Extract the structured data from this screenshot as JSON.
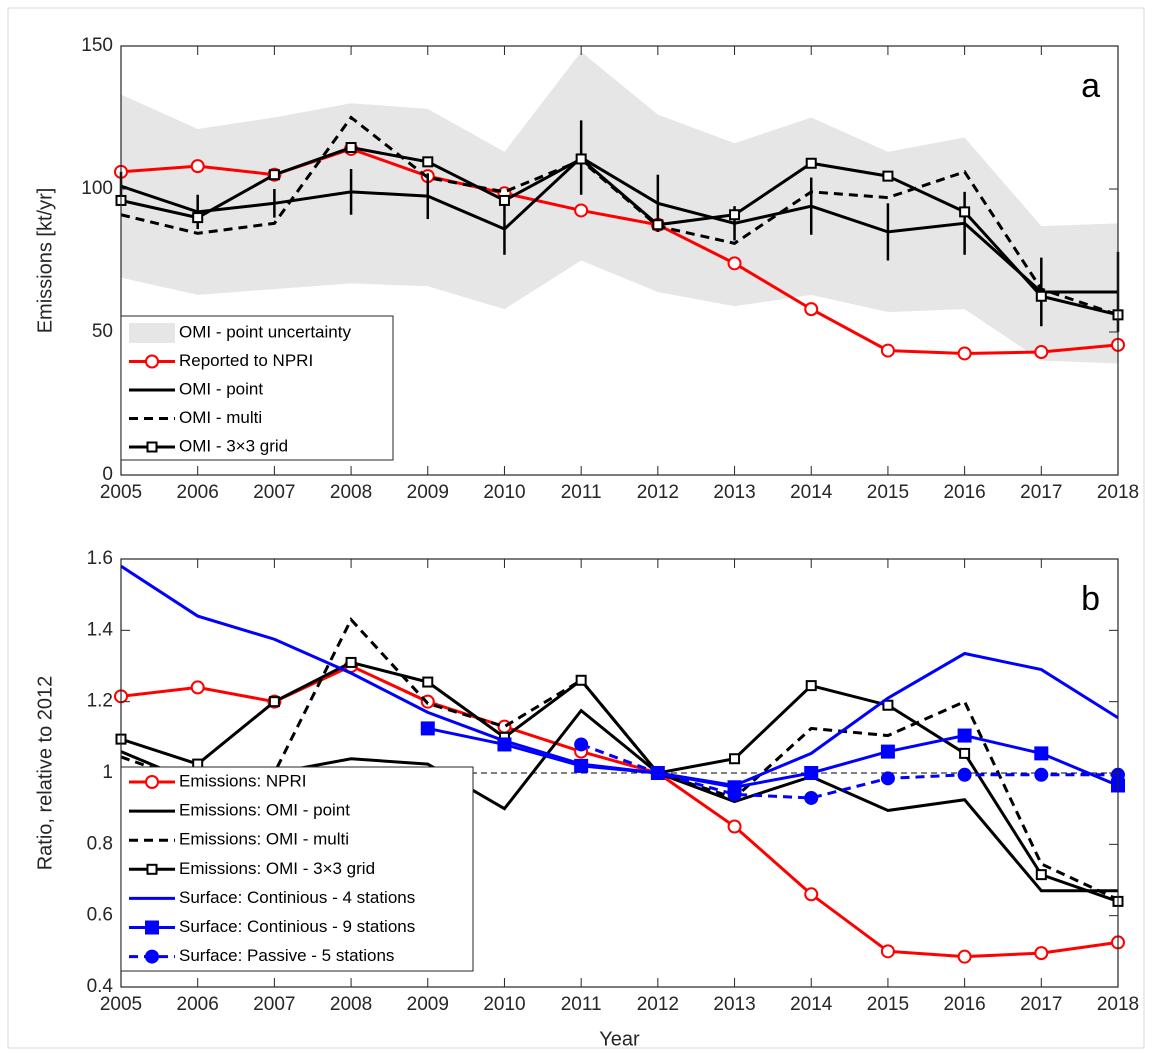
{
  "chart_data": [
    {
      "type": "line",
      "panel_label": "a",
      "ylabel": "Emissions [kt/yr]",
      "x": [
        2005,
        2006,
        2007,
        2008,
        2009,
        2010,
        2011,
        2012,
        2013,
        2014,
        2015,
        2016,
        2017,
        2018
      ],
      "xlim": [
        2005,
        2018
      ],
      "xticks": [
        2005,
        2006,
        2007,
        2008,
        2009,
        2010,
        2011,
        2012,
        2013,
        2014,
        2015,
        2016,
        2017,
        2018
      ],
      "ylim": [
        0,
        150
      ],
      "yticks": [
        0,
        50,
        100,
        150
      ],
      "legend": "lower left",
      "series": [
        {
          "name": "OMI - point uncertainty",
          "type": "band",
          "color": "#e6e6e6",
          "upper": [
            133,
            121,
            125,
            130,
            128,
            113,
            148,
            126,
            116,
            125,
            113,
            118,
            87,
            88
          ],
          "lower": [
            69,
            63,
            65,
            67,
            66,
            58,
            75,
            64,
            59,
            63,
            57,
            58,
            40,
            39
          ]
        },
        {
          "name": "Reported to NPRI",
          "color": "#ff0000",
          "style": "solid",
          "marker": "circle",
          "marker_filled": false,
          "values": [
            106,
            108,
            105,
            114,
            104.5,
            98.5,
            92.5,
            87.5,
            74,
            58,
            43.5,
            42.5,
            43,
            45.5
          ]
        },
        {
          "name": "OMI - point",
          "color": "#000000",
          "style": "solid",
          "values": [
            101,
            92,
            95,
            99,
            97.5,
            86,
            111,
            95,
            88,
            94,
            85,
            88,
            64,
            64
          ],
          "errors": [
            5,
            6,
            5,
            8,
            8,
            9,
            13,
            10,
            6,
            10,
            10,
            11,
            12,
            14
          ]
        },
        {
          "name": "OMI - multi",
          "color": "#000000",
          "style": "dashed",
          "values": [
            91,
            84.5,
            88,
            125,
            104,
            99,
            110,
            87,
            81,
            99,
            97,
            106,
            65,
            56
          ]
        },
        {
          "name": "OMI - 3×3 grid",
          "color": "#000000",
          "style": "solid",
          "marker": "square",
          "marker_filled": false,
          "values": [
            96,
            90,
            105,
            114.5,
            109.5,
            96,
            110.5,
            87.5,
            91,
            109,
            104.5,
            92,
            62.5,
            56
          ]
        }
      ]
    },
    {
      "type": "line",
      "panel_label": "b",
      "ylabel": "Ratio, relative to 2012",
      "xlabel": "Year",
      "x": [
        2005,
        2006,
        2007,
        2008,
        2009,
        2010,
        2011,
        2012,
        2013,
        2014,
        2015,
        2016,
        2017,
        2018
      ],
      "xlim": [
        2005,
        2018
      ],
      "xticks": [
        2005,
        2006,
        2007,
        2008,
        2009,
        2010,
        2011,
        2012,
        2013,
        2014,
        2015,
        2016,
        2017,
        2018
      ],
      "ylim": [
        0.4,
        1.6
      ],
      "yticks": [
        0.4,
        0.6,
        0.8,
        1,
        1.2,
        1.4,
        1.6
      ],
      "reference_line": 1,
      "legend": "lower left",
      "series": [
        {
          "name": "Emissions: NPRI",
          "color": "#ff0000",
          "style": "solid",
          "marker": "circle",
          "marker_filled": false,
          "values": [
            1.215,
            1.24,
            1.2,
            1.3,
            1.2,
            1.13,
            1.06,
            1.0,
            0.85,
            0.66,
            0.5,
            0.485,
            0.495,
            0.525
          ]
        },
        {
          "name": "Emissions: OMI - point",
          "color": "#000000",
          "style": "solid",
          "values": [
            1.06,
            0.97,
            1.0,
            1.04,
            1.025,
            0.9,
            1.175,
            1.0,
            0.92,
            0.99,
            0.895,
            0.925,
            0.67,
            0.67
          ]
        },
        {
          "name": "Emissions: OMI - multi",
          "color": "#000000",
          "style": "dashed",
          "values": [
            1.045,
            0.97,
            1.0,
            1.43,
            1.195,
            1.13,
            1.26,
            1.0,
            0.93,
            1.125,
            1.105,
            1.2,
            0.745,
            0.645
          ]
        },
        {
          "name": "Emissions: OMI - 3×3 grid",
          "color": "#000000",
          "style": "solid",
          "marker": "square",
          "marker_filled": false,
          "values": [
            1.095,
            1.025,
            1.2,
            1.31,
            1.255,
            1.1,
            1.26,
            1.0,
            1.04,
            1.245,
            1.19,
            1.055,
            0.715,
            0.64
          ]
        },
        {
          "name": "Surface: Continious - 4 stations",
          "color": "#0000ff",
          "style": "solid",
          "values": [
            1.58,
            1.44,
            1.375,
            1.28,
            1.17,
            1.09,
            1.025,
            1.0,
            0.965,
            1.055,
            1.21,
            1.335,
            1.29,
            1.155
          ]
        },
        {
          "name": "Surface: Continious - 9 stations",
          "color": "#0000ff",
          "style": "solid",
          "marker": "square",
          "marker_filled": true,
          "values": [
            null,
            null,
            null,
            null,
            1.125,
            1.08,
            1.02,
            1.0,
            0.96,
            1.0,
            1.06,
            1.105,
            1.055,
            0.965
          ]
        },
        {
          "name": "Surface: Passive - 5 stations",
          "color": "#0000ff",
          "style": "dashed",
          "marker": "circle",
          "marker_filled": true,
          "values": [
            null,
            null,
            null,
            null,
            null,
            null,
            1.08,
            1.0,
            0.94,
            0.93,
            0.985,
            0.995,
            0.995,
            0.995
          ]
        }
      ]
    }
  ]
}
